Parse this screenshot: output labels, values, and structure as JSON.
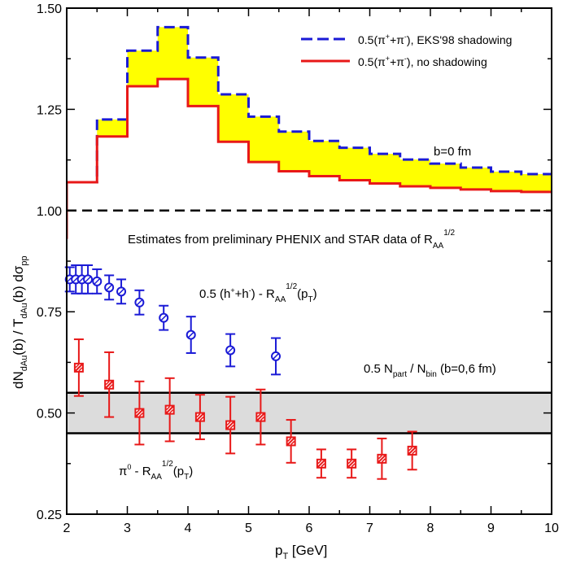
{
  "chart_data": {
    "type": "line",
    "xlabel_main": "p",
    "xlabel_sub": "T",
    "xlabel_rest": " [GeV]",
    "ylabel": "dN_dAu(b) / T_dAu(b) dσ_pp",
    "ylabel_parts": {
      "p1": "dN",
      "p1sub": "dAu",
      "p2": "(b) / T",
      "p2sub": "dAu",
      "p3": "(b) dσ",
      "p3sub": "pp"
    },
    "xlim": [
      2,
      10
    ],
    "ylim": [
      0.25,
      1.5
    ],
    "xticks": [
      2,
      3,
      4,
      5,
      6,
      7,
      8,
      9,
      10
    ],
    "xtick_labels": [
      "2",
      "3",
      "4",
      "5",
      "6",
      "7",
      "8",
      "9",
      "10"
    ],
    "yticks": [
      0.25,
      0.5,
      0.75,
      1.0,
      1.25,
      1.5
    ],
    "ytick_labels": [
      "0.25",
      "0.50",
      "0.75",
      "1.00",
      "1.25",
      "1.50"
    ],
    "grid": false,
    "legend_placement": "top-right",
    "bin_edges": [
      2.0,
      2.5,
      3.0,
      3.5,
      4.0,
      4.5,
      5.0,
      5.5,
      6.0,
      6.5,
      7.0,
      7.5,
      8.0,
      8.5,
      9.0,
      9.5,
      10.0
    ],
    "series": [
      {
        "name": "0.5(π⁺+π⁻), EKS'98 shadowing",
        "legend_parts": {
          "a": "0.5(π",
          "sup1": "+",
          "b": "+π",
          "sup2": "-",
          "c": "), EKS'98 shadowing"
        },
        "style": "dashed",
        "color": "#1a1ad6",
        "values": [
          1.07,
          1.225,
          1.395,
          1.453,
          1.378,
          1.287,
          1.232,
          1.195,
          1.172,
          1.155,
          1.14,
          1.126,
          1.116,
          1.106,
          1.096,
          1.09
        ]
      },
      {
        "name": "0.5(π⁺+π⁻), no shadowing",
        "legend_parts": {
          "a": "0.5(π",
          "sup1": "+",
          "b": "+π",
          "sup2": "-",
          "c": "), no shadowing"
        },
        "style": "solid",
        "color": "#e81818",
        "values": [
          1.07,
          1.183,
          1.307,
          1.325,
          1.258,
          1.17,
          1.12,
          1.097,
          1.085,
          1.075,
          1.067,
          1.06,
          1.056,
          1.052,
          1.048,
          1.046
        ]
      }
    ],
    "fill_between_color": "#ffff00",
    "reference_line": {
      "y": 1.0,
      "style": "dashed",
      "color": "#000000"
    },
    "band": {
      "y0": 0.45,
      "y1": 0.55,
      "color": "#dcdcdc",
      "label_parts": {
        "a": "0.5 N",
        "sub1": "part",
        "b": " / N",
        "sub2": "bin",
        "c": " (b=0,6 fm)"
      }
    },
    "annotations": {
      "b0": "b=0 fm",
      "estimates_parts": {
        "a": "Estimates from preliminary PHENIX and STAR data of R",
        "sub": "AA",
        "sup": "1/2"
      },
      "hadron_label_parts": {
        "a": "0.5 (h",
        "sup1": "+",
        "b": "+h",
        "sup2": "-",
        "c": ") - R",
        "sub": "AA",
        "sup": "1/2",
        "d": "(p",
        "sub2": "T",
        "e": ")"
      },
      "pion_label_parts": {
        "a": "π",
        "sup0": "0",
        "b": " - R",
        "sub": "AA",
        "sup": "1/2",
        "c": "(p",
        "sub2": "T",
        "d": ")"
      }
    },
    "data_series": [
      {
        "name": "0.5 (h⁺+h⁻) - R_AA^1/2(p_T)",
        "marker": "open-circle",
        "color": "#1a1ad6",
        "points": [
          {
            "x": 2.05,
            "y": 0.83,
            "err": 0.03
          },
          {
            "x": 2.15,
            "y": 0.83,
            "err": 0.035
          },
          {
            "x": 2.25,
            "y": 0.83,
            "err": 0.035
          },
          {
            "x": 2.35,
            "y": 0.83,
            "err": 0.035
          },
          {
            "x": 2.5,
            "y": 0.825,
            "err": 0.03
          },
          {
            "x": 2.7,
            "y": 0.81,
            "err": 0.03
          },
          {
            "x": 2.9,
            "y": 0.8,
            "err": 0.03
          },
          {
            "x": 3.2,
            "y": 0.773,
            "err": 0.03
          },
          {
            "x": 3.6,
            "y": 0.735,
            "err": 0.03
          },
          {
            "x": 4.05,
            "y": 0.693,
            "err": 0.045
          },
          {
            "x": 4.7,
            "y": 0.655,
            "err": 0.04
          },
          {
            "x": 5.45,
            "y": 0.64,
            "err": 0.045
          }
        ]
      },
      {
        "name": "π0 - R_AA^1/2(p_T)",
        "marker": "hatched-square",
        "color": "#e81818",
        "points": [
          {
            "x": 2.2,
            "y": 0.612,
            "err": 0.07
          },
          {
            "x": 2.7,
            "y": 0.57,
            "err": 0.08
          },
          {
            "x": 3.2,
            "y": 0.5,
            "err": 0.078
          },
          {
            "x": 3.7,
            "y": 0.508,
            "err": 0.078
          },
          {
            "x": 4.2,
            "y": 0.49,
            "err": 0.055
          },
          {
            "x": 4.7,
            "y": 0.47,
            "err": 0.07
          },
          {
            "x": 5.2,
            "y": 0.49,
            "err": 0.068
          },
          {
            "x": 5.7,
            "y": 0.43,
            "err": 0.053
          },
          {
            "x": 6.2,
            "y": 0.375,
            "err": 0.035
          },
          {
            "x": 6.7,
            "y": 0.375,
            "err": 0.035
          },
          {
            "x": 7.2,
            "y": 0.387,
            "err": 0.05
          },
          {
            "x": 7.7,
            "y": 0.407,
            "err": 0.047
          }
        ]
      }
    ]
  }
}
